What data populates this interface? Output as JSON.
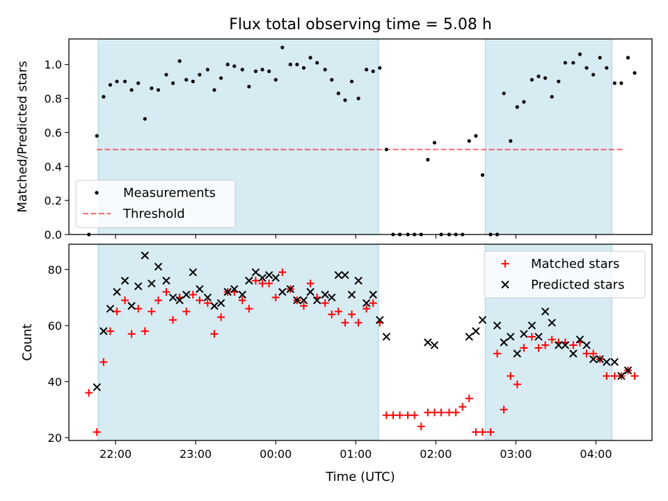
{
  "title": "Flux total observing time = 5.08 h",
  "x_label": "Time (UTC)",
  "x_ticks": [
    "22:00",
    "23:00",
    "00:00",
    "01:00",
    "02:00",
    "03:00",
    "04:00"
  ],
  "colors": {
    "shade": "#add8e6",
    "measurements": "#000000",
    "threshold": "#ff0000",
    "matched": "#ff0000",
    "predicted": "#000000"
  },
  "chart_data": [
    {
      "type": "scatter",
      "ylabel": "Matched/Predicted stars",
      "ylim": [
        0,
        1.15
      ],
      "yticks": [
        "0.0",
        "0.2",
        "0.4",
        "0.6",
        "0.8",
        "1.0"
      ],
      "threshold": 0.5,
      "legend": {
        "placement": "lower-left",
        "entries": [
          "Measurements",
          "Threshold"
        ]
      },
      "shaded_intervals": [
        [
          "21:47",
          "01:17"
        ],
        [
          "02:37",
          "04:12"
        ]
      ],
      "series": [
        {
          "name": "Measurements",
          "points": [
            [
              "21:40",
              0.0
            ],
            [
              "21:46",
              0.58
            ],
            [
              "21:51",
              0.81
            ],
            [
              "21:56",
              0.88
            ],
            [
              "22:01",
              0.9
            ],
            [
              "22:07",
              0.9
            ],
            [
              "22:12",
              0.85
            ],
            [
              "22:17",
              0.89
            ],
            [
              "22:22",
              0.68
            ],
            [
              "22:27",
              0.86
            ],
            [
              "22:32",
              0.85
            ],
            [
              "22:38",
              0.94
            ],
            [
              "22:43",
              0.89
            ],
            [
              "22:48",
              1.02
            ],
            [
              "22:53",
              0.91
            ],
            [
              "22:58",
              0.9
            ],
            [
              "23:03",
              0.94
            ],
            [
              "23:09",
              0.97
            ],
            [
              "23:14",
              0.85
            ],
            [
              "23:19",
              0.92
            ],
            [
              "23:24",
              1.0
            ],
            [
              "23:29",
              0.99
            ],
            [
              "23:35",
              0.97
            ],
            [
              "23:40",
              0.87
            ],
            [
              "23:45",
              0.96
            ],
            [
              "23:50",
              0.97
            ],
            [
              "23:55",
              0.96
            ],
            [
              "00:00",
              0.91
            ],
            [
              "00:05",
              1.1
            ],
            [
              "00:11",
              1.0
            ],
            [
              "00:16",
              1.0
            ],
            [
              "00:21",
              0.98
            ],
            [
              "00:26",
              1.04
            ],
            [
              "00:31",
              1.01
            ],
            [
              "00:37",
              0.97
            ],
            [
              "00:42",
              0.91
            ],
            [
              "00:47",
              0.83
            ],
            [
              "00:52",
              0.79
            ],
            [
              "00:57",
              0.9
            ],
            [
              "01:02",
              0.8
            ],
            [
              "01:08",
              0.97
            ],
            [
              "01:13",
              0.96
            ],
            [
              "01:18",
              0.98
            ],
            [
              "01:23",
              0.5
            ],
            [
              "01:28",
              0.0
            ],
            [
              "01:33",
              0.0
            ],
            [
              "01:39",
              0.0
            ],
            [
              "01:44",
              0.0
            ],
            [
              "01:49",
              0.0
            ],
            [
              "01:54",
              0.44
            ],
            [
              "01:59",
              0.54
            ],
            [
              "02:04",
              0.0
            ],
            [
              "02:10",
              0.0
            ],
            [
              "02:15",
              0.0
            ],
            [
              "02:20",
              0.0
            ],
            [
              "02:25",
              0.55
            ],
            [
              "02:30",
              0.58
            ],
            [
              "02:35",
              0.35
            ],
            [
              "02:41",
              0.0
            ],
            [
              "02:46",
              0.0
            ],
            [
              "02:51",
              0.83
            ],
            [
              "02:56",
              0.55
            ],
            [
              "03:01",
              0.75
            ],
            [
              "03:06",
              0.78
            ],
            [
              "03:12",
              0.91
            ],
            [
              "03:17",
              0.93
            ],
            [
              "03:22",
              0.92
            ],
            [
              "03:27",
              0.81
            ],
            [
              "03:32",
              0.9
            ],
            [
              "03:37",
              1.01
            ],
            [
              "03:43",
              1.01
            ],
            [
              "03:48",
              1.06
            ],
            [
              "03:53",
              0.98
            ],
            [
              "03:58",
              0.94
            ],
            [
              "04:03",
              1.04
            ],
            [
              "04:08",
              0.98
            ],
            [
              "04:14",
              0.89
            ],
            [
              "04:19",
              0.89
            ],
            [
              "04:24",
              1.04
            ],
            [
              "04:29",
              0.95
            ]
          ]
        }
      ]
    },
    {
      "type": "scatter",
      "ylabel": "Count",
      "ylim": [
        19,
        89
      ],
      "yticks": [
        "20",
        "40",
        "60",
        "80"
      ],
      "legend": {
        "placement": "upper-right",
        "entries": [
          "Matched stars",
          "Predicted stars"
        ]
      },
      "shaded_intervals": [
        [
          "21:47",
          "01:17"
        ],
        [
          "02:37",
          "04:12"
        ]
      ],
      "series": [
        {
          "name": "Matched stars",
          "points": [
            [
              "21:40",
              36
            ],
            [
              "21:46",
              22
            ],
            [
              "21:51",
              47
            ],
            [
              "21:56",
              58
            ],
            [
              "22:01",
              65
            ],
            [
              "22:07",
              69
            ],
            [
              "22:12",
              57
            ],
            [
              "22:17",
              66
            ],
            [
              "22:22",
              58
            ],
            [
              "22:27",
              65
            ],
            [
              "22:32",
              69
            ],
            [
              "22:38",
              72
            ],
            [
              "22:43",
              62
            ],
            [
              "22:48",
              70
            ],
            [
              "22:53",
              65
            ],
            [
              "22:58",
              71
            ],
            [
              "23:03",
              69
            ],
            [
              "23:09",
              68
            ],
            [
              "23:14",
              57
            ],
            [
              "23:19",
              63
            ],
            [
              "23:24",
              72
            ],
            [
              "23:29",
              72
            ],
            [
              "23:35",
              69
            ],
            [
              "23:40",
              66
            ],
            [
              "23:45",
              76
            ],
            [
              "23:50",
              75
            ],
            [
              "23:55",
              75
            ],
            [
              "00:00",
              70
            ],
            [
              "00:05",
              79
            ],
            [
              "00:11",
              73
            ],
            [
              "00:16",
              69
            ],
            [
              "00:21",
              67
            ],
            [
              "00:26",
              75
            ],
            [
              "00:31",
              70
            ],
            [
              "00:37",
              68
            ],
            [
              "00:42",
              64
            ],
            [
              "00:47",
              65
            ],
            [
              "00:52",
              61
            ],
            [
              "00:57",
              64
            ],
            [
              "01:02",
              61
            ],
            [
              "01:08",
              66
            ],
            [
              "01:13",
              68
            ],
            [
              "01:18",
              61
            ],
            [
              "01:23",
              28
            ],
            [
              "01:28",
              28
            ],
            [
              "01:33",
              28
            ],
            [
              "01:39",
              28
            ],
            [
              "01:44",
              28
            ],
            [
              "01:49",
              24
            ],
            [
              "01:54",
              29
            ],
            [
              "01:59",
              29
            ],
            [
              "02:04",
              29
            ],
            [
              "02:10",
              29
            ],
            [
              "02:15",
              29
            ],
            [
              "02:20",
              31
            ],
            [
              "02:25",
              34
            ],
            [
              "02:30",
              22
            ],
            [
              "02:35",
              22
            ],
            [
              "02:41",
              22
            ],
            [
              "02:46",
              50
            ],
            [
              "02:51",
              30
            ],
            [
              "02:56",
              42
            ],
            [
              "03:01",
              39
            ],
            [
              "03:06",
              52
            ],
            [
              "03:12",
              56
            ],
            [
              "03:17",
              52
            ],
            [
              "03:22",
              53
            ],
            [
              "03:27",
              55
            ],
            [
              "03:32",
              54
            ],
            [
              "03:37",
              54
            ],
            [
              "03:43",
              53
            ],
            [
              "03:48",
              54
            ],
            [
              "03:53",
              50
            ],
            [
              "03:58",
              50
            ],
            [
              "04:03",
              48
            ],
            [
              "04:08",
              42
            ],
            [
              "04:14",
              42
            ],
            [
              "04:19",
              42
            ],
            [
              "04:24",
              44
            ],
            [
              "04:29",
              42
            ]
          ]
        },
        {
          "name": "Predicted stars",
          "points": [
            [
              "21:46",
              38
            ],
            [
              "21:51",
              58
            ],
            [
              "21:56",
              66
            ],
            [
              "22:01",
              72
            ],
            [
              "22:07",
              76
            ],
            [
              "22:12",
              67
            ],
            [
              "22:17",
              74
            ],
            [
              "22:22",
              85
            ],
            [
              "22:27",
              75
            ],
            [
              "22:32",
              81
            ],
            [
              "22:38",
              76
            ],
            [
              "22:43",
              70
            ],
            [
              "22:48",
              69
            ],
            [
              "22:53",
              71
            ],
            [
              "22:58",
              79
            ],
            [
              "23:03",
              73
            ],
            [
              "23:09",
              70
            ],
            [
              "23:14",
              67
            ],
            [
              "23:19",
              68
            ],
            [
              "23:24",
              72
            ],
            [
              "23:29",
              73
            ],
            [
              "23:35",
              71
            ],
            [
              "23:40",
              76
            ],
            [
              "23:45",
              79
            ],
            [
              "23:50",
              77
            ],
            [
              "23:55",
              78
            ],
            [
              "00:00",
              77
            ],
            [
              "00:05",
              72
            ],
            [
              "00:11",
              73
            ],
            [
              "00:16",
              69
            ],
            [
              "00:21",
              69
            ],
            [
              "00:26",
              72
            ],
            [
              "00:31",
              69
            ],
            [
              "00:37",
              71
            ],
            [
              "00:42",
              70
            ],
            [
              "00:47",
              78
            ],
            [
              "00:52",
              78
            ],
            [
              "00:57",
              71
            ],
            [
              "01:02",
              76
            ],
            [
              "01:08",
              68
            ],
            [
              "01:13",
              71
            ],
            [
              "01:18",
              62
            ],
            [
              "01:23",
              56
            ],
            [
              "01:54",
              54
            ],
            [
              "01:59",
              53
            ],
            [
              "02:25",
              56
            ],
            [
              "02:30",
              58
            ],
            [
              "02:35",
              62
            ],
            [
              "02:46",
              60
            ],
            [
              "02:51",
              54
            ],
            [
              "02:56",
              56
            ],
            [
              "03:01",
              50
            ],
            [
              "03:06",
              57
            ],
            [
              "03:12",
              60
            ],
            [
              "03:17",
              56
            ],
            [
              "03:22",
              65
            ],
            [
              "03:27",
              61
            ],
            [
              "03:32",
              53
            ],
            [
              "03:37",
              53
            ],
            [
              "03:43",
              50
            ],
            [
              "03:48",
              55
            ],
            [
              "03:53",
              53
            ],
            [
              "03:58",
              48
            ],
            [
              "04:03",
              48
            ],
            [
              "04:08",
              47
            ],
            [
              "04:14",
              47
            ],
            [
              "04:19",
              42
            ],
            [
              "04:24",
              44
            ]
          ]
        }
      ]
    }
  ]
}
